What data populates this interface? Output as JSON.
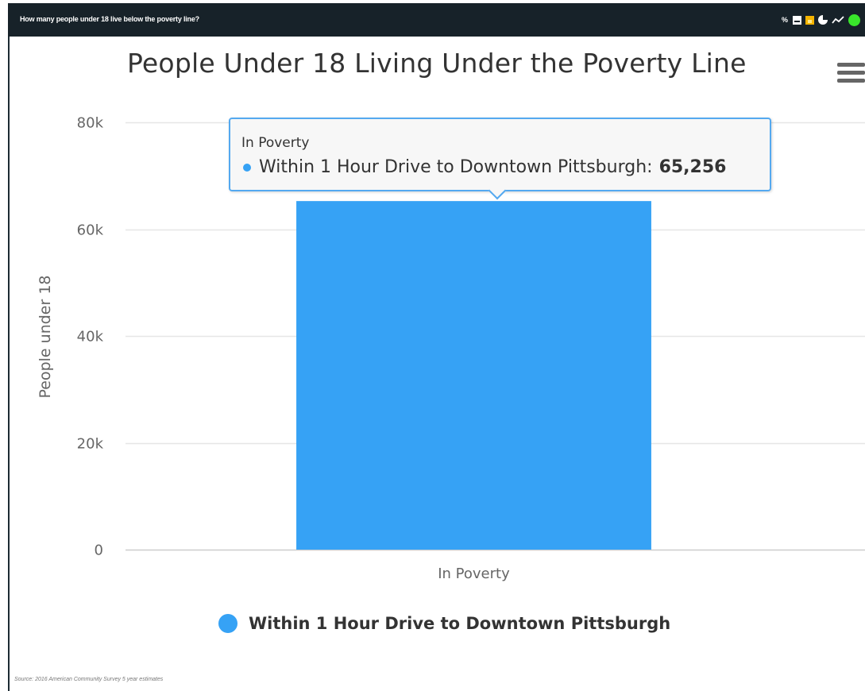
{
  "header": {
    "question": "How many people under 18 live below the poverty line?",
    "tools": [
      {
        "icon": "percent-icon",
        "label": "%"
      },
      {
        "icon": "table-icon"
      },
      {
        "icon": "bar-chart-icon"
      },
      {
        "icon": "pie-chart-icon"
      },
      {
        "icon": "line-chart-icon"
      },
      {
        "icon": "status-dot-icon"
      }
    ]
  },
  "menu": {
    "icon": "hamburger-menu-icon"
  },
  "tooltip": {
    "category": "In Poverty",
    "series_name": "Within 1 Hour Drive to Downtown Pittsburgh",
    "value_text": "65,256"
  },
  "legend": {
    "label": "Within 1 Hour Drive to Downtown Pittsburgh"
  },
  "source": "Source: 2016 American Community Survey 5 year estimates",
  "colors": {
    "bar": "#36a2f5",
    "header_bg": "#172229",
    "tooltip_border": "#54a9f0",
    "status": "#39e62b"
  },
  "chart_data": {
    "type": "bar",
    "title": "People Under 18 Living Under the Poverty Line",
    "ylabel": "People under 18",
    "xlabel": "",
    "categories": [
      "In Poverty"
    ],
    "series": [
      {
        "name": "Within 1 Hour Drive to Downtown Pittsburgh",
        "values": [
          65256
        ]
      }
    ],
    "ylim": [
      0,
      80000
    ],
    "yticks": [
      0,
      20000,
      40000,
      60000,
      80000
    ],
    "ytick_labels": [
      "0",
      "20k",
      "40k",
      "60k",
      "80k"
    ],
    "grid": true,
    "legend_position": "bottom-center"
  }
}
